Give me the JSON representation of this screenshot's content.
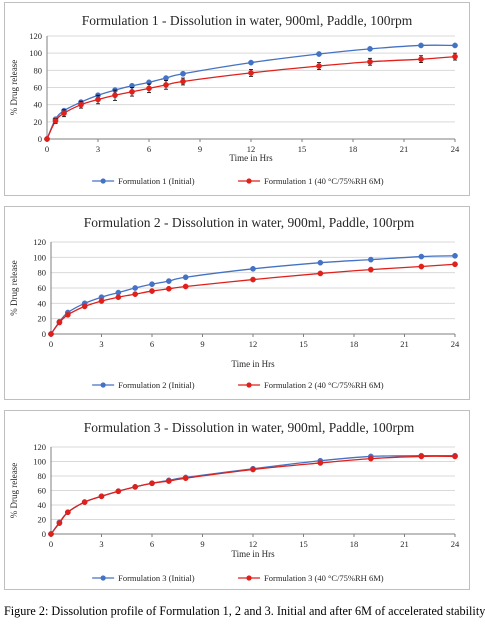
{
  "chart_data": [
    {
      "type": "line",
      "title": "Formulation 1 - Dissolution in water, 900ml, Paddle, 100rpm",
      "xlabel": "Time in Hrs",
      "ylabel": "% Drug release",
      "xlim": [
        0,
        24
      ],
      "ylim": [
        0,
        120
      ],
      "xticks": [
        "0",
        "3",
        "6",
        "9",
        "12",
        "15",
        "18",
        "21",
        "24"
      ],
      "yticks": [
        "0",
        "20",
        "40",
        "60",
        "80",
        "100",
        "120"
      ],
      "grid": "horizontal",
      "legend": "bottom",
      "x": [
        0,
        0.5,
        1,
        2,
        3,
        4,
        5,
        6,
        7,
        8,
        12,
        16,
        19,
        22,
        24
      ],
      "series": [
        {
          "name": "Formulation 1 (Initial)",
          "color": "#4472c4",
          "marker": "circle",
          "values": [
            0,
            23,
            33,
            43,
            51,
            57,
            62,
            66,
            71,
            76,
            89,
            99,
            105,
            109,
            109
          ],
          "errors": [
            0,
            1,
            1,
            1,
            1,
            1,
            1,
            1,
            1,
            1,
            1,
            1,
            1,
            1,
            1
          ]
        },
        {
          "name": "Formulation 1 (40 °C/75%RH 6M)",
          "color": "#e0201b",
          "marker": "circle",
          "values": [
            0,
            21,
            30,
            40,
            46,
            51,
            55,
            59,
            63,
            67,
            77,
            85,
            90,
            93,
            96
          ],
          "errors": [
            0,
            3,
            4,
            4,
            5,
            6,
            5,
            5,
            5,
            4,
            4,
            4,
            4,
            4,
            4
          ]
        }
      ]
    },
    {
      "type": "line",
      "title": "Formulation 2 - Dissolution in water, 900ml, Paddle, 100rpm",
      "xlabel": "Time in Hrs",
      "ylabel": "% Drug release",
      "xlim": [
        0,
        24
      ],
      "ylim": [
        0,
        120
      ],
      "xticks": [
        "0",
        "3",
        "6",
        "9",
        "12",
        "15",
        "18",
        "21",
        "24"
      ],
      "yticks": [
        "0",
        "20",
        "40",
        "60",
        "80",
        "100",
        "120"
      ],
      "grid": "horizontal",
      "legend": "bottom",
      "x": [
        0,
        0.5,
        1,
        2,
        3,
        4,
        5,
        6,
        7,
        8,
        12,
        16,
        19,
        22,
        24
      ],
      "series": [
        {
          "name": "Formulation 2 (Initial)",
          "color": "#4472c4",
          "marker": "circle",
          "values": [
            0,
            16,
            28,
            40,
            48,
            54,
            60,
            65,
            69,
            74,
            85,
            93,
            97,
            101,
            102
          ],
          "errors": [
            0,
            1,
            1,
            1,
            1,
            1,
            1,
            1,
            1,
            1,
            1,
            1,
            1,
            1,
            1
          ]
        },
        {
          "name": "Formulation 2 (40 °C/75%RH 6M)",
          "color": "#e0201b",
          "marker": "circle",
          "values": [
            0,
            15,
            25,
            36,
            43,
            48,
            52,
            56,
            59,
            62,
            71,
            79,
            84,
            88,
            91
          ],
          "errors": [
            0,
            1,
            1,
            1,
            1,
            1,
            1,
            1,
            1,
            1,
            1,
            1,
            1,
            1,
            1
          ]
        }
      ]
    },
    {
      "type": "line",
      "title": "Formulation 3 - Dissolution in water, 900ml, Paddle, 100rpm",
      "xlabel": "Time in Hrs",
      "ylabel": "% Drug release",
      "xlim": [
        0,
        24
      ],
      "ylim": [
        0,
        120
      ],
      "xticks": [
        "0",
        "3",
        "6",
        "9",
        "12",
        "15",
        "18",
        "21",
        "24"
      ],
      "yticks": [
        "0",
        "20",
        "40",
        "60",
        "80",
        "100",
        "120"
      ],
      "grid": "horizontal",
      "legend": "bottom",
      "x": [
        0,
        0.5,
        1,
        2,
        3,
        4,
        5,
        6,
        7,
        8,
        12,
        16,
        19,
        22,
        24
      ],
      "series": [
        {
          "name": "Formulation 3 (Initial)",
          "color": "#4472c4",
          "marker": "circle",
          "values": [
            0,
            16,
            30,
            44,
            52,
            59,
            65,
            70,
            74,
            78,
            90,
            101,
            107,
            108,
            108
          ],
          "errors": [
            0,
            1,
            1,
            1,
            1,
            1,
            1,
            1,
            1,
            1,
            1,
            1,
            1,
            1,
            1
          ]
        },
        {
          "name": "Formulation 3 (40 °C/75%RH 6M)",
          "color": "#e0201b",
          "marker": "circle",
          "values": [
            0,
            15,
            30,
            44,
            52,
            59,
            65,
            70,
            73,
            77,
            89,
            98,
            104,
            107,
            107
          ],
          "errors": [
            0,
            1,
            1,
            1,
            1,
            1,
            1,
            1,
            1,
            1,
            1,
            1,
            1,
            1,
            1
          ]
        }
      ]
    }
  ],
  "caption": "Figure 2: Dissolution profile of Formulation 1, 2 and 3. Initial and after 6M of accelerated stability"
}
